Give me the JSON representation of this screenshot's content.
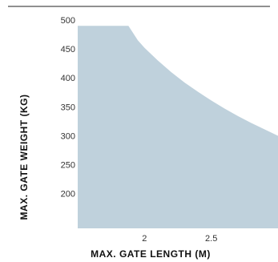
{
  "chart_data": {
    "type": "area",
    "title": "",
    "xlabel": "MAX. GATE LENGTH (M)",
    "ylabel": "MAX. GATE WEIGHT (KG)",
    "xlim": [
      1.5,
      3.0
    ],
    "ylim": [
      140,
      500
    ],
    "x_ticks": [
      2,
      2.5
    ],
    "y_ticks": [
      500,
      450,
      400,
      350,
      300,
      250,
      200
    ],
    "grid": false,
    "fill_color": "#bfd1dc",
    "series": [
      {
        "points": [
          [
            1.5,
            490
          ],
          [
            1.88,
            490
          ],
          [
            1.95,
            465
          ],
          [
            2.0,
            452
          ],
          [
            2.1,
            430
          ],
          [
            2.2,
            410
          ],
          [
            2.3,
            392
          ],
          [
            2.4,
            376
          ],
          [
            2.5,
            361
          ],
          [
            2.6,
            347
          ],
          [
            2.7,
            334
          ],
          [
            2.8,
            322
          ],
          [
            2.9,
            311
          ],
          [
            3.0,
            300
          ]
        ]
      }
    ]
  }
}
